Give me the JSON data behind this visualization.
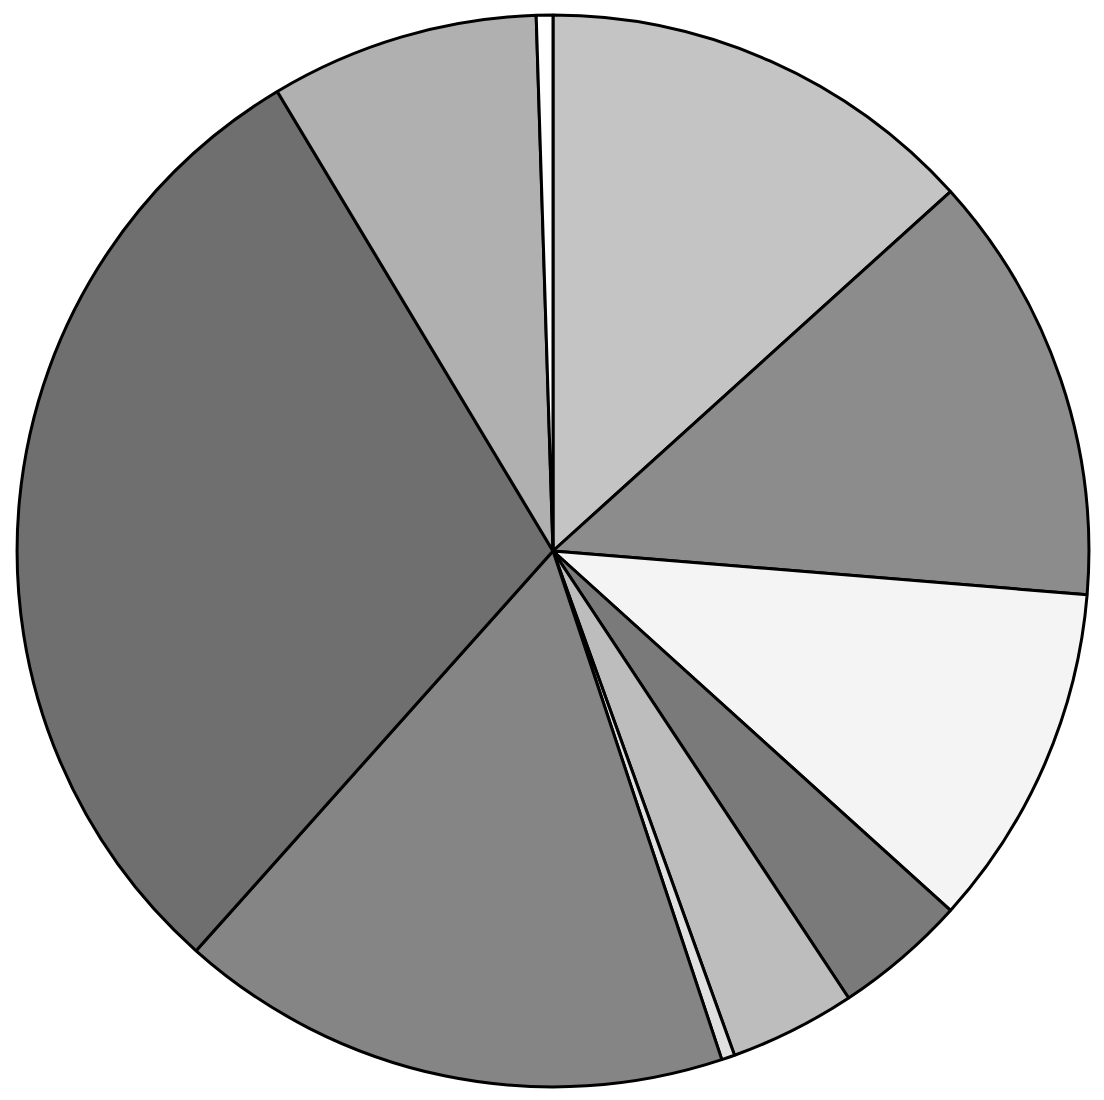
{
  "chart_data": {
    "type": "pie",
    "categories": [
      null,
      null,
      null,
      null,
      null,
      null,
      null,
      null,
      null,
      null
    ],
    "values": [
      13.3,
      13,
      10.4,
      4,
      3.8,
      0.4,
      16.7,
      29.8,
      8.1,
      0.5
    ],
    "colors": [
      "#c4c4c4",
      "#8c8c8c",
      "#f4f4f4",
      "#7a7a7a",
      "#bdbdbd",
      "#e0e0e0",
      "#858585",
      "#6f6f6f",
      "#b0b0b0",
      "#ffffff"
    ]
  }
}
